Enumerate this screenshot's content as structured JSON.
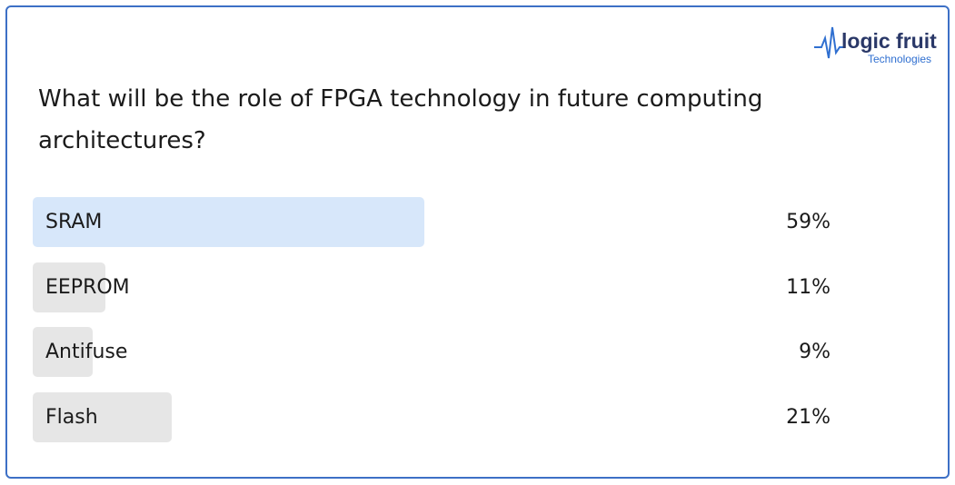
{
  "logo": {
    "name": "logic fruit",
    "tagline": "Technologies"
  },
  "chart_data": {
    "type": "bar",
    "title": "What will be the role of FPGA technology in future computing architectures?",
    "categories": [
      "SRAM",
      "EEPROM",
      "Antifuse",
      "Flash"
    ],
    "values": [
      59,
      11,
      9,
      21
    ],
    "value_labels": [
      "59%",
      "11%",
      "9%",
      "21%"
    ],
    "colors": [
      "#d7e7fa",
      "#e6e6e6",
      "#e6e6e6",
      "#e6e6e6"
    ],
    "xlim": [
      0,
      100
    ]
  }
}
